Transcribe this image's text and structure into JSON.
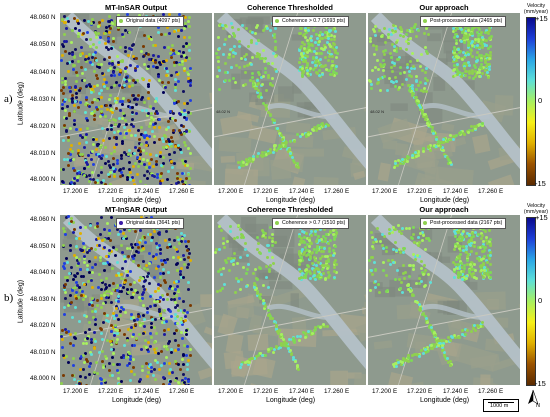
{
  "figure": {
    "rows": [
      {
        "label": "a)",
        "panels": [
          {
            "title": "MT-InSAR Output",
            "legend": "Original data (4097 pts)",
            "legend_color": "#8fd14f"
          },
          {
            "title": "Coherence Thresholded",
            "legend": "Coherence > 0.7 (1693 pts)",
            "legend_color": "#8fd14f"
          },
          {
            "title": "Our approach",
            "legend": "Post-processed data (2465 pts)",
            "legend_color": "#8fd14f"
          }
        ]
      },
      {
        "label": "b)",
        "panels": [
          {
            "title": "MT-InSAR Output",
            "legend": "Original data (3641 pts)",
            "legend_color": "#3a1aa8"
          },
          {
            "title": "Coherence Thresholded",
            "legend": "Coherence > 0.7 (1510 pts)",
            "legend_color": "#8fd14f"
          },
          {
            "title": "Our approach",
            "legend": "Post-processed data (2167 pts)",
            "legend_color": "#8fd14f"
          }
        ]
      }
    ],
    "y_ticks": [
      "48.060 N",
      "48.050 N",
      "48.040 N",
      "48.030 N",
      "48.020 N",
      "48.010 N",
      "48.000 N"
    ],
    "x_ticks": [
      "17.200 E",
      "17.220 E",
      "17.240 E",
      "17.260 E"
    ],
    "xlabel": "Longitude (deg)",
    "ylabel": "Latitude (deg)",
    "map_labels": [
      "48.02 N",
      "48.02 N"
    ],
    "colorbar": {
      "title_line1": "Velocity",
      "title_line2": "(mm/year)",
      "ticks": [
        "+15",
        "0",
        "-15"
      ],
      "stops": [
        "#0a0a8c",
        "#1d3fd8",
        "#2aa6e6",
        "#5fe0d8",
        "#a8f060",
        "#f6f018",
        "#e0b000",
        "#9a5200",
        "#5a2a00"
      ]
    },
    "scalebar": {
      "label": "1000 m"
    },
    "north_label": "N",
    "colors": {
      "map_base": "#8e9a8e",
      "river": "#b4c1c8",
      "field": "#a9a58c",
      "point_green": "#8fd14f"
    }
  }
}
